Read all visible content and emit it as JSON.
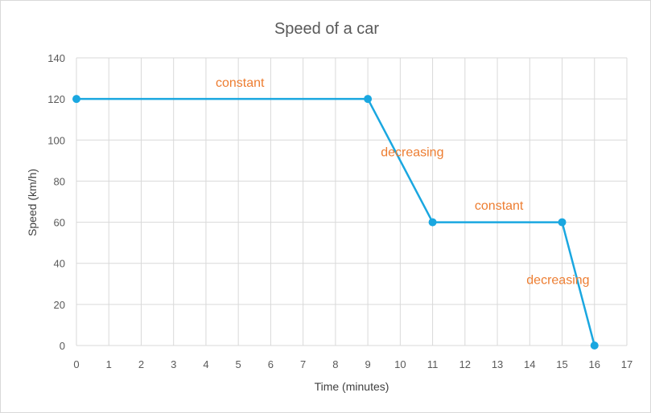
{
  "chart_data": {
    "type": "line",
    "title": "Speed of a car",
    "xlabel": "Time (minutes)",
    "ylabel": "Speed (km/h)",
    "xlim": [
      0,
      17
    ],
    "ylim": [
      0,
      140
    ],
    "x_ticks": [
      0,
      1,
      2,
      3,
      4,
      5,
      6,
      7,
      8,
      9,
      10,
      11,
      12,
      13,
      14,
      15,
      16,
      17
    ],
    "y_ticks": [
      0,
      20,
      40,
      60,
      80,
      100,
      120,
      140
    ],
    "grid": true,
    "legend": "none",
    "series": [
      {
        "x": [
          0,
          9,
          11,
          15,
          16
        ],
        "y": [
          120,
          120,
          60,
          60,
          0
        ],
        "color": "#1aa7e0"
      }
    ],
    "annotations": [
      {
        "text": "constant",
        "x": 4.3,
        "y": 126
      },
      {
        "text": "decreasing",
        "x": 9.4,
        "y": 92
      },
      {
        "text": "constant",
        "x": 12.3,
        "y": 66
      },
      {
        "text": "decreasing",
        "x": 13.9,
        "y": 30
      }
    ],
    "colors": {
      "line": "#1aa7e0",
      "annotation": "#ed7d31",
      "grid": "#d9d9d9"
    }
  }
}
